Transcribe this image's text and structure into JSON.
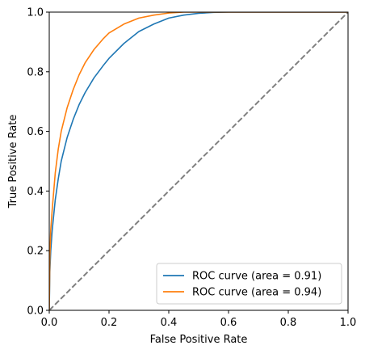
{
  "chart_data": {
    "type": "line",
    "title": "",
    "xlabel": "False Positive Rate",
    "ylabel": "True Positive Rate",
    "xlim": [
      0.0,
      1.0
    ],
    "ylim": [
      0.0,
      1.0
    ],
    "grid": false,
    "legend_position": "lower-right",
    "x_ticks": [
      "0.0",
      "0.2",
      "0.4",
      "0.6",
      "0.8",
      "1.0"
    ],
    "y_ticks": [
      "0.0",
      "0.2",
      "0.4",
      "0.6",
      "0.8",
      "1.0"
    ],
    "series": [
      {
        "name": "ROC curve (area = 0.91)",
        "color": "#1f77b4",
        "x": [
          0.0,
          0.002,
          0.005,
          0.01,
          0.02,
          0.03,
          0.04,
          0.05,
          0.06,
          0.08,
          0.1,
          0.12,
          0.15,
          0.18,
          0.2,
          0.25,
          0.3,
          0.35,
          0.4,
          0.45,
          0.5,
          0.55,
          0.6,
          0.7,
          0.8,
          0.9,
          1.0
        ],
        "y": [
          0.0,
          0.13,
          0.2,
          0.27,
          0.37,
          0.44,
          0.5,
          0.54,
          0.58,
          0.64,
          0.69,
          0.73,
          0.78,
          0.82,
          0.845,
          0.895,
          0.935,
          0.96,
          0.98,
          0.99,
          0.996,
          0.999,
          1.0,
          1.0,
          1.0,
          1.0,
          1.0
        ]
      },
      {
        "name": "ROC curve (area = 0.94)",
        "color": "#ff7f0e",
        "x": [
          0.0,
          0.002,
          0.005,
          0.01,
          0.02,
          0.03,
          0.04,
          0.05,
          0.06,
          0.08,
          0.1,
          0.12,
          0.15,
          0.18,
          0.2,
          0.25,
          0.3,
          0.35,
          0.4,
          0.45,
          0.5,
          0.6,
          0.7,
          0.8,
          0.9,
          1.0
        ],
        "y": [
          0.0,
          0.18,
          0.27,
          0.34,
          0.46,
          0.54,
          0.6,
          0.64,
          0.68,
          0.74,
          0.79,
          0.83,
          0.875,
          0.91,
          0.93,
          0.96,
          0.98,
          0.99,
          0.997,
          1.0,
          1.0,
          1.0,
          1.0,
          1.0,
          1.0,
          1.0
        ]
      }
    ],
    "reference_line": {
      "x": [
        0.0,
        1.0
      ],
      "y": [
        0.0,
        1.0
      ],
      "color": "#808080",
      "style": "dashed"
    }
  }
}
